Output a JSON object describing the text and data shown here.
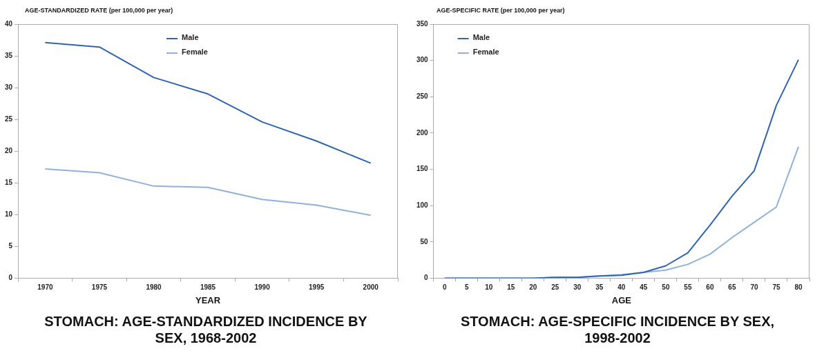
{
  "chart_data": [
    {
      "type": "line",
      "title": "STOMACH: AGE-STANDARDIZED INCIDENCE BY SEX, 1968-2002",
      "ylabel": "AGE-STANDARDIZED RATE (per 100,000 per year)",
      "xlabel": "YEAR",
      "categories": [
        "1970",
        "1975",
        "1980",
        "1985",
        "1990",
        "1995",
        "2000"
      ],
      "series": [
        {
          "name": "Male",
          "color": "#2e64ad",
          "values": [
            37.1,
            36.4,
            31.6,
            29.0,
            24.6,
            21.6,
            18.1
          ]
        },
        {
          "name": "Female",
          "color": "#8db1dc",
          "values": [
            17.2,
            16.6,
            14.5,
            14.3,
            12.4,
            11.5,
            9.9
          ]
        }
      ],
      "ylim": [
        0,
        40
      ],
      "yticks": [
        0,
        5,
        10,
        15,
        20,
        25,
        30,
        35,
        40
      ],
      "grid": false,
      "legend": "top",
      "marker": "none",
      "line_style": "solid"
    },
    {
      "type": "line",
      "title": "STOMACH: AGE-SPECIFIC INCIDENCE BY SEX, 1998-2002",
      "ylabel": "AGE-SPECIFIC RATE (per 100,000 per year)",
      "xlabel": "AGE",
      "categories": [
        "0",
        "5",
        "10",
        "15",
        "20",
        "25",
        "30",
        "35",
        "40",
        "45",
        "50",
        "55",
        "60",
        "65",
        "70",
        "75",
        "80"
      ],
      "series": [
        {
          "name": "Male",
          "color": "#2e64ad",
          "values": [
            0,
            0,
            0,
            0,
            0,
            1,
            1,
            3,
            4,
            8,
            17,
            35,
            73,
            113,
            148,
            238,
            301
          ]
        },
        {
          "name": "Female",
          "color": "#8db1dc",
          "values": [
            0,
            0,
            0,
            0,
            0,
            1,
            1,
            3,
            5,
            8,
            11,
            19,
            33,
            56,
            77,
            98,
            181
          ]
        }
      ],
      "ylim": [
        0,
        350
      ],
      "yticks": [
        0,
        50,
        100,
        150,
        200,
        250,
        300,
        350
      ],
      "grid": false,
      "legend": "top left",
      "marker": "none",
      "line_style": "solid"
    }
  ]
}
